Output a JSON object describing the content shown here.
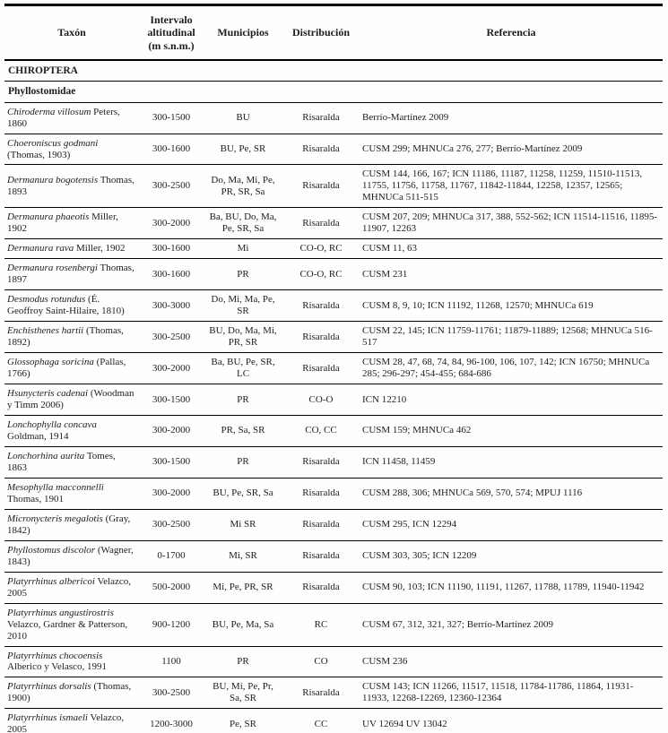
{
  "table": {
    "columns": [
      "Taxón",
      "Intervalo altitudinal (m s.n.m.)",
      "Municipios",
      "Distribución",
      "Referencia"
    ],
    "sections": [
      "CHIROPTERA",
      "Phyllostomidae"
    ],
    "rows": [
      {
        "taxon": "Chiroderma villosum",
        "authority": "Peters, 1860",
        "interval": "300-1500",
        "municipios": "BU",
        "distribucion": "Risaralda",
        "referencia": "Berrío-Martínez 2009"
      },
      {
        "taxon": "Choeroniscus godmani",
        "authority": "(Thomas, 1903)",
        "interval": "300-1600",
        "municipios": "BU, Pe, SR",
        "distribucion": "Risaralda",
        "referencia": "CUSM 299; MHNUCa 276, 277; Berrío-Martínez 2009"
      },
      {
        "taxon": "Dermanura bogotensis",
        "authority": "Thomas, 1893",
        "interval": "300-2500",
        "municipios": "Do, Ma, Mi, Pe, PR, SR, Sa",
        "distribucion": "Risaralda",
        "referencia": "CUSM 144, 166, 167; ICN 11186, 11187, 11258, 11259, 11510-11513, 11755, 11756, 11758, 11767, 11842-11844, 12258, 12357, 12565; MHNUCa 511-515"
      },
      {
        "taxon": "Dermanura phaeotis",
        "authority": "Miller, 1902",
        "interval": "300-2000",
        "municipios": "Ba, BU, Do, Ma, Pe, SR, Sa",
        "distribucion": "Risaralda",
        "referencia": "CUSM 207, 209; MHNUCa 317, 388, 552-562; ICN 11514-11516, 11895-11907, 12263"
      },
      {
        "taxon": "Dermanura rava",
        "authority": "Miller, 1902",
        "interval": "300-1600",
        "municipios": "Mi",
        "distribucion": "CO-O, RC",
        "referencia": "CUSM 11, 63"
      },
      {
        "taxon": "Dermanura rosenbergi",
        "authority": "Thomas, 1897",
        "interval": "300-1600",
        "municipios": "PR",
        "distribucion": "CO-O, RC",
        "referencia": "CUSM 231"
      },
      {
        "taxon": "Desmodus rotundus",
        "authority": "(É. Geoffroy Saint-Hilaire, 1810)",
        "interval": "300-3000",
        "municipios": "Do, Mi, Ma, Pe, SR",
        "distribucion": "Risaralda",
        "referencia": "CUSM 8, 9, 10; ICN 11192, 11268, 12570; MHNUCa 619"
      },
      {
        "taxon": "Enchisthenes hartii",
        "authority": "(Thomas, 1892)",
        "interval": "300-2500",
        "municipios": "BU, Do, Ma, Mi, PR, SR",
        "distribucion": "Risaralda",
        "referencia": "CUSM 22, 145; ICN 11759-11761; 11879-11889; 12568; MHNUCa 516-517"
      },
      {
        "taxon": "Glossophaga soricina",
        "authority": "(Pallas, 1766)",
        "interval": "300-2000",
        "municipios": "Ba, BU, Pe, SR, LC",
        "distribucion": "Risaralda",
        "referencia": "CUSM 28, 47, 68, 74, 84, 96-100, 106, 107, 142; ICN 16750; MHNUCa 285; 296-297; 454-455; 684-686"
      },
      {
        "taxon": "Hsunycteris cadenai",
        "authority": "(Woodman y Timm 2006)",
        "interval": "300-1500",
        "municipios": "PR",
        "distribucion": "CO-O",
        "referencia": "ICN 12210"
      },
      {
        "taxon": "Lonchophylla concava",
        "authority": "Goldman, 1914",
        "interval": "300-2000",
        "municipios": "PR, Sa, SR",
        "distribucion": "CO, CC",
        "referencia": "CUSM 159; MHNUCa 462"
      },
      {
        "taxon": "Lonchorhina aurita",
        "authority": "Tomes, 1863",
        "interval": "300-1500",
        "municipios": "PR",
        "distribucion": "Risaralda",
        "referencia": "ICN 11458, 11459"
      },
      {
        "taxon": "Mesophylla macconnelli",
        "authority": "Thomas, 1901",
        "interval": "300-2000",
        "municipios": "BU, Pe, SR, Sa",
        "distribucion": "Risaralda",
        "referencia": "CUSM 288, 306; MHNUCa 569, 570, 574; MPUJ 1116"
      },
      {
        "taxon": "Micronycteris megalotis",
        "authority": "(Gray, 1842)",
        "interval": "300-2500",
        "municipios": "Mi SR",
        "distribucion": "Risaralda",
        "referencia": "CUSM 295, ICN 12294"
      },
      {
        "taxon": "Phyllostomus discolor",
        "authority": "(Wagner, 1843)",
        "interval": "0-1700",
        "municipios": "Mi, SR",
        "distribucion": "Risaralda",
        "referencia": "CUSM 303, 305; ICN 12209"
      },
      {
        "taxon": "Platyrrhinus albericoi",
        "authority": "Velazco, 2005",
        "interval": "500-2000",
        "municipios": "Mi, Pe, PR, SR",
        "distribucion": "Risaralda",
        "referencia": "CUSM 90, 103; ICN 11190, 11191, 11267, 11788, 11789, 11940-11942"
      },
      {
        "taxon": "Platyrrhinus angustirostris",
        "authority": "Velazco, Gardner & Patterson, 2010",
        "interval": "900-1200",
        "municipios": "BU, Pe, Ma, Sa",
        "distribucion": "RC",
        "referencia": "CUSM 67, 312, 321, 327; Berrío-Martínez 2009"
      },
      {
        "taxon": "Platyrrhinus chocoensis",
        "authority": "Alberico y Velasco, 1991",
        "interval": "1100",
        "municipios": "PR",
        "distribucion": "CO",
        "referencia": "CUSM 236"
      },
      {
        "taxon": "Platyrrhinus dorsalis",
        "authority": "(Thomas, 1900)",
        "interval": "300-2500",
        "municipios": "BU, Mi, Pe, Pr, Sa, SR",
        "distribucion": "Risaralda",
        "referencia": "CUSM 143; ICN 11266, 11517, 11518, 11784-11786, 11864, 11931-11933, 12268-12269, 12360-12364"
      },
      {
        "taxon": "Platyrrhinus ismaeli",
        "authority": "Velazco, 2005",
        "interval": "1200-3000",
        "municipios": "Pe, SR",
        "distribucion": "CC",
        "referencia": "UV 12694 UV 13042"
      }
    ]
  }
}
